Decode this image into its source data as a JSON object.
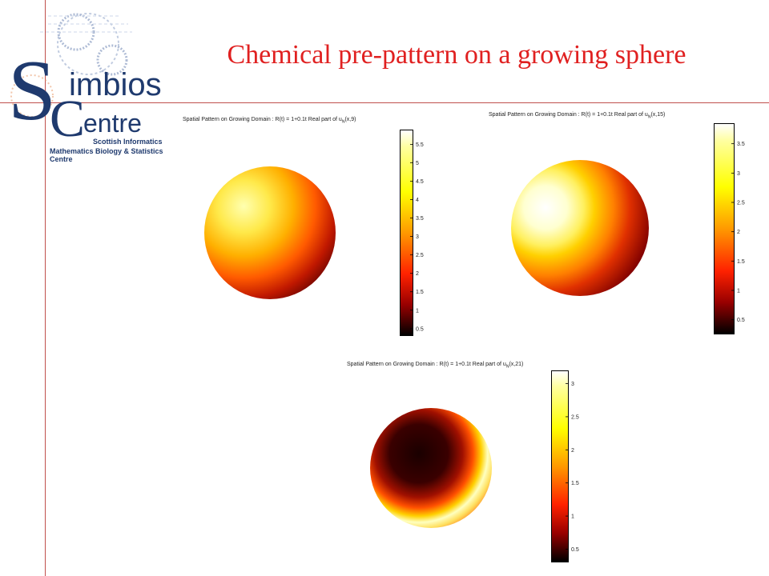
{
  "slide": {
    "title": "Chemical pre-pattern on a growing sphere"
  },
  "logo": {
    "word_s": "S",
    "word_imbios": "imbios",
    "word_c": "C",
    "word_entre": "entre",
    "tagline1": "Scottish Informatics",
    "tagline2": "Mathematics Biology & Statistics Centre"
  },
  "figures": [
    {
      "title_prefix": "Spatial Pattern on Growing Domain : R(t) = 1+0.1t Real part of u",
      "title_sub": "N",
      "title_suffix": "(x,9)",
      "colorbar_ticks": [
        "5.5",
        "5",
        "4.5",
        "4",
        "3.5",
        "3",
        "2.5",
        "2",
        "1.5",
        "1",
        "0.5"
      ],
      "colorbar_range": [
        0.3,
        5.9
      ]
    },
    {
      "title_prefix": "Spatial Pattern on Growing Domain : R(t) = 1+0.1t Real part of u",
      "title_sub": "N",
      "title_suffix": "(x,15)",
      "colorbar_ticks": [
        "3.5",
        "3",
        "2.5",
        "2",
        "1.5",
        "1",
        "0.5"
      ],
      "colorbar_range": [
        0.25,
        3.85
      ]
    },
    {
      "title_prefix": "Spatial Pattern on Growing Domain : R(t) = 1+0.1t Real part of u",
      "title_sub": "N",
      "title_suffix": "(x,21)",
      "colorbar_ticks": [
        "3",
        "2.5",
        "2",
        "1.5",
        "1",
        "0.5"
      ],
      "colorbar_range": [
        0.3,
        3.2
      ]
    }
  ],
  "colors": {
    "accent_line": "#c0504d",
    "title": "#e02020",
    "logo_blue": "#1f3a6e"
  }
}
